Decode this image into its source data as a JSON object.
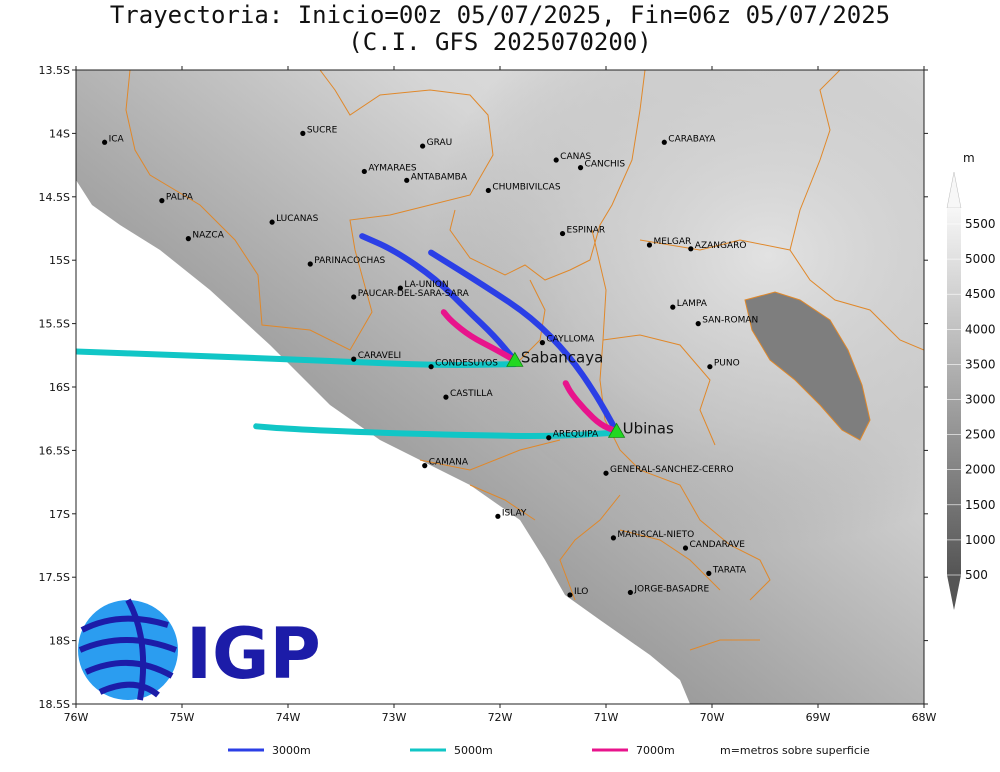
{
  "title": {
    "line1": "Trayectoria: Inicio=00z 05/07/2025, Fin=06z 05/07/2025",
    "line2": "(C.I. GFS 2025070200)"
  },
  "axes": {
    "lon_ticks": [
      {
        "v": -76,
        "label": "76W"
      },
      {
        "v": -75,
        "label": "75W"
      },
      {
        "v": -74,
        "label": "74W"
      },
      {
        "v": -73,
        "label": "73W"
      },
      {
        "v": -72,
        "label": "72W"
      },
      {
        "v": -71,
        "label": "71W"
      },
      {
        "v": -70,
        "label": "70W"
      },
      {
        "v": -69,
        "label": "69W"
      },
      {
        "v": -68,
        "label": "68W"
      }
    ],
    "lat_ticks": [
      {
        "v": -13.5,
        "label": "13.5S"
      },
      {
        "v": -14,
        "label": "14S"
      },
      {
        "v": -14.5,
        "label": "14.5S"
      },
      {
        "v": -15,
        "label": "15S"
      },
      {
        "v": -15.5,
        "label": "15.5S"
      },
      {
        "v": -16,
        "label": "16S"
      },
      {
        "v": -16.5,
        "label": "16.5S"
      },
      {
        "v": -17,
        "label": "17S"
      },
      {
        "v": -17.5,
        "label": "17.5S"
      },
      {
        "v": -18,
        "label": "18S"
      },
      {
        "v": -18.5,
        "label": "18.5S"
      }
    ],
    "lon_range": [
      -76,
      -68
    ],
    "lat_range": [
      -18.5,
      -13.5
    ]
  },
  "places": [
    {
      "name": "ICA",
      "lon": -75.73,
      "lat": -14.07
    },
    {
      "name": "SUCRE",
      "lon": -73.86,
      "lat": -14.0
    },
    {
      "name": "GRAU",
      "lon": -72.73,
      "lat": -14.1
    },
    {
      "name": "AYMARAES",
      "lon": -73.28,
      "lat": -14.3
    },
    {
      "name": "ANTABAMBA",
      "lon": -72.88,
      "lat": -14.37
    },
    {
      "name": "CANAS",
      "lon": -71.47,
      "lat": -14.21
    },
    {
      "name": "CANCHIS",
      "lon": -71.24,
      "lat": -14.27
    },
    {
      "name": "CHUMBIVILCAS",
      "lon": -72.11,
      "lat": -14.45
    },
    {
      "name": "CARABAYA",
      "lon": -70.45,
      "lat": -14.07
    },
    {
      "name": "PALPA",
      "lon": -75.19,
      "lat": -14.53
    },
    {
      "name": "LUCANAS",
      "lon": -74.15,
      "lat": -14.7
    },
    {
      "name": "NAZCA",
      "lon": -74.94,
      "lat": -14.83
    },
    {
      "name": "ESPINAR",
      "lon": -71.41,
      "lat": -14.79
    },
    {
      "name": "MELGAR",
      "lon": -70.59,
      "lat": -14.88
    },
    {
      "name": "AZANGARO",
      "lon": -70.2,
      "lat": -14.91
    },
    {
      "name": "PARINACOCHAS",
      "lon": -73.79,
      "lat": -15.03
    },
    {
      "name": "LA-UNION",
      "lon": -72.94,
      "lat": -15.22
    },
    {
      "name": "PAUCAR-DEL-SARA-SARA",
      "lon": -73.38,
      "lat": -15.29
    },
    {
      "name": "LAMPA",
      "lon": -70.37,
      "lat": -15.37
    },
    {
      "name": "SAN-ROMAN",
      "lon": -70.13,
      "lat": -15.5
    },
    {
      "name": "CAYLLOMA",
      "lon": -71.6,
      "lat": -15.65
    },
    {
      "name": "CARAVELI",
      "lon": -73.38,
      "lat": -15.78
    },
    {
      "name": "CONDESUYOS",
      "lon": -72.65,
      "lat": -15.84
    },
    {
      "name": "PUNO",
      "lon": -70.02,
      "lat": -15.84
    },
    {
      "name": "CASTILLA",
      "lon": -72.51,
      "lat": -16.08
    },
    {
      "name": "AREQUIPA",
      "lon": -71.54,
      "lat": -16.4
    },
    {
      "name": "GENERAL-SANCHEZ-CERRO",
      "lon": -71.0,
      "lat": -16.68
    },
    {
      "name": "CAMANA",
      "lon": -72.71,
      "lat": -16.62
    },
    {
      "name": "ISLAY",
      "lon": -72.02,
      "lat": -17.02
    },
    {
      "name": "MARISCAL-NIETO",
      "lon": -70.93,
      "lat": -17.19
    },
    {
      "name": "CANDARAVE",
      "lon": -70.25,
      "lat": -17.27
    },
    {
      "name": "TARATA",
      "lon": -70.03,
      "lat": -17.47
    },
    {
      "name": "ILO",
      "lon": -71.34,
      "lat": -17.64
    },
    {
      "name": "JORGE-BASADRE",
      "lon": -70.77,
      "lat": -17.62
    }
  ],
  "volcanoes": [
    {
      "name": "Sabancaya",
      "lon": -71.86,
      "lat": -15.79
    },
    {
      "name": "Ubinas",
      "lon": -70.9,
      "lat": -16.35
    }
  ],
  "trajectories": [
    {
      "level": "3000m",
      "color": "#2b3fe6",
      "points": [
        [
          -71.86,
          -15.79
        ],
        [
          -72.05,
          -15.6
        ],
        [
          -72.3,
          -15.4
        ],
        [
          -72.6,
          -15.15
        ],
        [
          -73.0,
          -14.92
        ],
        [
          -73.3,
          -14.81
        ]
      ]
    },
    {
      "level": "3000m",
      "color": "#2b3fe6",
      "points": [
        [
          -70.9,
          -16.35
        ],
        [
          -71.1,
          -16.05
        ],
        [
          -71.35,
          -15.75
        ],
        [
          -71.7,
          -15.45
        ],
        [
          -72.15,
          -15.2
        ],
        [
          -72.65,
          -14.94
        ]
      ]
    },
    {
      "level": "5000m",
      "color": "#11c6c6",
      "points": [
        [
          -71.86,
          -15.82
        ],
        [
          -72.5,
          -15.83
        ],
        [
          -73.2,
          -15.81
        ],
        [
          -74.0,
          -15.78
        ],
        [
          -75.0,
          -15.75
        ],
        [
          -76.0,
          -15.72
        ]
      ]
    },
    {
      "level": "5000m",
      "color": "#11c6c6",
      "points": [
        [
          -70.9,
          -16.36
        ],
        [
          -71.5,
          -16.39
        ],
        [
          -72.3,
          -16.38
        ],
        [
          -73.2,
          -16.36
        ],
        [
          -74.0,
          -16.33
        ],
        [
          -74.3,
          -16.31
        ]
      ]
    },
    {
      "level": "7000m",
      "color": "#e8148c",
      "points": [
        [
          -71.86,
          -15.79
        ],
        [
          -72.05,
          -15.7
        ],
        [
          -72.28,
          -15.6
        ],
        [
          -72.46,
          -15.48
        ],
        [
          -72.53,
          -15.41
        ]
      ]
    },
    {
      "level": "7000m",
      "color": "#e8148c",
      "points": [
        [
          -70.9,
          -16.35
        ],
        [
          -71.05,
          -16.3
        ],
        [
          -71.2,
          -16.18
        ],
        [
          -71.33,
          -16.05
        ],
        [
          -71.38,
          -15.97
        ]
      ]
    }
  ],
  "legend": [
    {
      "label": "3000m",
      "color": "#2b3fe6"
    },
    {
      "label": "5000m",
      "color": "#11c6c6"
    },
    {
      "label": "7000m",
      "color": "#e8148c"
    }
  ],
  "legend_note": "m=metros sobre superficie",
  "colorbar": {
    "unit": "m",
    "labels": [
      "500",
      "1000",
      "1500",
      "2000",
      "2500",
      "3000",
      "3500",
      "4000",
      "4500",
      "5000",
      "5500"
    ],
    "colors": [
      "#6b6b6b",
      "#7a7a7a",
      "#888888",
      "#979797",
      "#a5a5a5",
      "#b4b4b4",
      "#c2c2c2",
      "#d0d0d0",
      "#dddddd",
      "#e9e9e9",
      "#f5f5f5"
    ]
  },
  "logo": {
    "text": "IGP",
    "color": "#1c1ca8",
    "accent": "#2b9df0"
  }
}
